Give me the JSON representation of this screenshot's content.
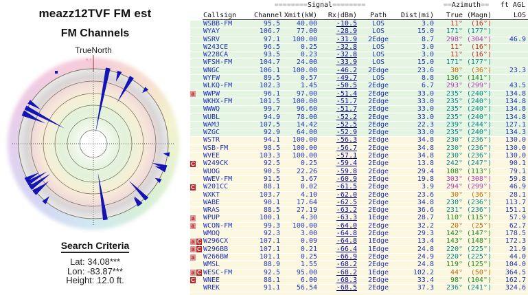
{
  "left_panel": {
    "title_line1": "meazz12TVF FM est",
    "title_line2": "FM Channels",
    "compass_label": "TrueNorth",
    "north_marker": "N",
    "search": {
      "heading": "Search Criteria",
      "lat_label": "Lat:",
      "lat_value": "34.08***",
      "lon_label": "Lon:",
      "lon_value": "-83.87***",
      "height_label": "Height:",
      "height_value": "12.0 ft."
    }
  },
  "table": {
    "signal_deco": "========",
    "signal_label": "Signal",
    "azimuth_deco": "==",
    "azimuth_label": "Azimuth",
    "ftagl_label": "ft AGL",
    "columns": {
      "callsign": "Callsign",
      "channel": "Channel",
      "xmit": "Xmit(kW)",
      "rx": "Rx(dBm)",
      "path": "Path",
      "dist": "Dist(mi)",
      "true": "True",
      "magn": "(Magn)",
      "los": "LOS"
    }
  },
  "palette": {
    "red": "#c6271c",
    "orange": "#c66a00",
    "green": "#1e8b1e",
    "teal": "#028b8b",
    "magenta": "#b43fb4",
    "spike_blue": "#1414b4",
    "row_green": "#e4f5e2",
    "row_cream": "#fcf8e0"
  },
  "chart_data": {
    "type": "radar-spikes+table",
    "title": "meazz12TVF FM est — FM Channels",
    "radar": {
      "orientation_label": "TrueNorth",
      "rings": 6,
      "angle_encoding": "true_azimuth_deg",
      "length_encoding": "rx_dbm (stronger = longer spike toward center)",
      "spike_color": "#1414b4"
    },
    "rows": [
      {
        "flags": [],
        "callsign": "WSBB-FM",
        "channel": "95.5",
        "xmit": "40.00",
        "rx": "-10.5",
        "path": "LOS",
        "dist": "3.0",
        "true_az": "11",
        "magn": "16",
        "los": "",
        "band": "green",
        "dir": "red"
      },
      {
        "flags": [],
        "callsign": "WYAY",
        "channel": "106.7",
        "xmit": "77.00",
        "rx": "-28.9",
        "path": "LOS",
        "dist": "15.0",
        "true_az": "171",
        "magn": "177",
        "los": "",
        "band": "green",
        "dir": "teal"
      },
      {
        "flags": [],
        "callsign": "WSRV",
        "channel": "97.1",
        "xmit": "100.00",
        "rx": "-31.9",
        "path": "2Edge",
        "dist": "8.7",
        "true_az": "298",
        "magn": "304",
        "los": "46.9",
        "band": "green",
        "dir": "magenta"
      },
      {
        "flags": [],
        "callsign": "W243CE",
        "channel": "96.5",
        "xmit": "0.25",
        "rx": "-32.8",
        "path": "LOS",
        "dist": "3.0",
        "true_az": "11",
        "magn": "16",
        "los": "",
        "band": "green",
        "dir": "red"
      },
      {
        "flags": [],
        "callsign": "W228CA",
        "channel": "93.5",
        "xmit": "0.23",
        "rx": "-32.8",
        "path": "LOS",
        "dist": "3.0",
        "true_az": "11",
        "magn": "16",
        "los": "",
        "band": "green",
        "dir": "red"
      },
      {
        "flags": [],
        "callsign": "WFSH-FM",
        "channel": "104.7",
        "xmit": "24.00",
        "rx": "-33.9",
        "path": "LOS",
        "dist": "15.0",
        "true_az": "171",
        "magn": "177",
        "los": "",
        "band": "green",
        "dir": "teal"
      },
      {
        "flags": [],
        "callsign": "WNGC",
        "channel": "106.1",
        "xmit": "100.00",
        "rx": "-46.2",
        "path": "2Edge",
        "dist": "23.6",
        "true_az": "30",
        "magn": "36",
        "los": "23.3",
        "band": "green",
        "dir": "orange"
      },
      {
        "flags": [],
        "callsign": "WYFW",
        "channel": "89.5",
        "xmit": "0.57",
        "rx": "-49.7",
        "path": "LOS",
        "dist": "8.8",
        "true_az": "136",
        "magn": "141",
        "los": "",
        "band": "green",
        "dir": "green"
      },
      {
        "flags": [],
        "callsign": "WLKQ-FM",
        "channel": "102.3",
        "xmit": "1.45",
        "rx": "-50.5",
        "path": "2Edge",
        "dist": "6.7",
        "true_az": "293",
        "magn": "299",
        "los": "43.5",
        "band": "green",
        "dir": "magenta"
      },
      {
        "flags": [
          "a"
        ],
        "callsign": "WWPW",
        "channel": "96.1",
        "xmit": "97.00",
        "rx": "-51.4",
        "path": "2Edge",
        "dist": "33.0",
        "true_az": "235",
        "magn": "240",
        "los": "134.8",
        "band": "green",
        "dir": "teal"
      },
      {
        "flags": [],
        "callsign": "WKHX-FM",
        "channel": "101.5",
        "xmit": "100.00",
        "rx": "-51.7",
        "path": "2Edge",
        "dist": "33.0",
        "true_az": "235",
        "magn": "240",
        "los": "134.8",
        "band": "green",
        "dir": "teal"
      },
      {
        "flags": [],
        "callsign": "WWWQ",
        "channel": "99.7",
        "xmit": "96.60",
        "rx": "-51.7",
        "path": "2Edge",
        "dist": "33.0",
        "true_az": "235",
        "magn": "240",
        "los": "134.8",
        "band": "green",
        "dir": "teal"
      },
      {
        "flags": [],
        "callsign": "WUBL",
        "channel": "94.9",
        "xmit": "78.00",
        "rx": "-52.2",
        "path": "2Edge",
        "dist": "33.0",
        "true_az": "235",
        "magn": "240",
        "los": "134.8",
        "band": "green",
        "dir": "teal"
      },
      {
        "flags": [],
        "callsign": "WAMJ",
        "channel": "107.5",
        "xmit": "14.42",
        "rx": "-52.5",
        "path": "2Edge",
        "dist": "22.3",
        "true_az": "239",
        "magn": "244",
        "los": "127.1",
        "band": "green",
        "dir": "teal"
      },
      {
        "flags": [],
        "callsign": "WZGC",
        "channel": "92.9",
        "xmit": "64.00",
        "rx": "-52.9",
        "path": "2Edge",
        "dist": "33.0",
        "true_az": "235",
        "magn": "240",
        "los": "134.3",
        "band": "green",
        "dir": "teal"
      },
      {
        "flags": [],
        "callsign": "WSTR",
        "channel": "94.1",
        "xmit": "100.00",
        "rx": "-56.3",
        "path": "2Edge",
        "dist": "34.8",
        "true_az": "230",
        "magn": "236",
        "los": "130.0",
        "band": "cream",
        "dir": "teal"
      },
      {
        "flags": [],
        "callsign": "WSB-FM",
        "channel": "98.5",
        "xmit": "100.00",
        "rx": "-56.7",
        "path": "2Edge",
        "dist": "34.8",
        "true_az": "230",
        "magn": "236",
        "los": "130.0",
        "band": "cream",
        "dir": "teal"
      },
      {
        "flags": [],
        "callsign": "WVEE",
        "channel": "103.3",
        "xmit": "100.00",
        "rx": "-57.1",
        "path": "2Edge",
        "dist": "34.8",
        "true_az": "230",
        "magn": "236",
        "los": "130.0",
        "band": "cream",
        "dir": "teal"
      },
      {
        "flags": [
          "C"
        ],
        "callsign": "W249CK",
        "channel": "92.5",
        "xmit": "0.25",
        "rx": "-59.4",
        "path": "2Edge",
        "dist": "13.8",
        "true_az": "242",
        "magn": "247",
        "los": "90.1",
        "band": "cream",
        "dir": "teal"
      },
      {
        "flags": [],
        "callsign": "WUOG",
        "channel": "90.5",
        "xmit": "22.26",
        "rx": "-59.8",
        "path": "2Edge",
        "dist": "29.4",
        "true_az": "108",
        "magn": "113",
        "los": "79.1",
        "band": "cream",
        "dir": "green"
      },
      {
        "flags": [],
        "callsign": "WWEV-FM",
        "channel": "91.5",
        "xmit": "3.67",
        "rx": "-60.9",
        "path": "2Edge",
        "dist": "19.8",
        "true_az": "303",
        "magn": "308",
        "los": "59.8",
        "band": "cream",
        "dir": "magenta"
      },
      {
        "flags": [
          "C"
        ],
        "callsign": "W201CC",
        "channel": "88.1",
        "xmit": "0.02",
        "rx": "-61.5",
        "path": "2Edge",
        "dist": "3.9",
        "true_az": "294",
        "magn": "299",
        "los": "46.9",
        "band": "cream",
        "dir": "magenta"
      },
      {
        "flags": [],
        "callsign": "WXKT",
        "channel": "103.7",
        "xmit": "4.10",
        "rx": "-62.0",
        "path": "2Edge",
        "dist": "23.6",
        "true_az": "30",
        "magn": "36",
        "los": "28.1",
        "band": "cream",
        "dir": "orange"
      },
      {
        "flags": [],
        "callsign": "WABE",
        "channel": "90.1",
        "xmit": "17.64",
        "rx": "-62.5",
        "path": "2Edge",
        "dist": "34.8",
        "true_az": "230",
        "magn": "236",
        "los": "113.7",
        "band": "cream",
        "dir": "teal"
      },
      {
        "flags": [],
        "callsign": "WRAS",
        "channel": "88.5",
        "xmit": "27.19",
        "rx": "-63.2",
        "path": "2Edge",
        "dist": "36.6",
        "true_az": "231",
        "magn": "236",
        "los": "151.1",
        "band": "cream",
        "dir": "teal"
      },
      {
        "flags": [
          "a"
        ],
        "callsign": "WPUP",
        "channel": "100.1",
        "xmit": "4.30",
        "rx": "-63.3",
        "path": "1Edge",
        "dist": "28.7",
        "true_az": "110",
        "magn": "115",
        "los": "57.9",
        "band": "cream",
        "dir": "green"
      },
      {
        "flags": [
          "a"
        ],
        "callsign": "WCON-FM",
        "channel": "99.3",
        "xmit": "100.00",
        "rx": "-64.0",
        "path": "2Edge",
        "dist": "32.2",
        "true_az": "20",
        "magn": "25",
        "los": "62.7",
        "band": "cream",
        "dir": "orange"
      },
      {
        "flags": [],
        "callsign": "WMOQ",
        "channel": "92.3",
        "xmit": "3.00",
        "rx": "-64.8",
        "path": "2Edge",
        "dist": "29.3",
        "true_az": "142",
        "magn": "147",
        "los": "178.5",
        "band": "cream",
        "dir": "green"
      },
      {
        "flags": [
          "a",
          "C"
        ],
        "callsign": "W296CX",
        "channel": "107.1",
        "xmit": "0.09",
        "rx": "-64.8",
        "path": "1Edge",
        "dist": "13.4",
        "true_az": "143",
        "magn": "148",
        "los": "172.3",
        "band": "cream",
        "dir": "green"
      },
      {
        "flags": [
          "a",
          "C"
        ],
        "callsign": "W296BB",
        "channel": "107.1",
        "xmit": "0.21",
        "rx": "-66.4",
        "path": "1Edge",
        "dist": "24.8",
        "true_az": "220",
        "magn": "225",
        "los": "21.9",
        "band": "cream",
        "dir": "teal"
      },
      {
        "flags": [
          "a"
        ],
        "callsign": "W266BW",
        "channel": "101.1",
        "xmit": "0.25",
        "rx": "-66.9",
        "path": "2Edge",
        "dist": "24.9",
        "true_az": "220",
        "magn": "225",
        "los": "44.0",
        "band": "cream",
        "dir": "teal"
      },
      {
        "flags": [],
        "callsign": "WMSL",
        "channel": "88.9",
        "xmit": "1.55",
        "rx": "-68.2",
        "path": "2Edge",
        "dist": "24.8",
        "true_az": "119",
        "magn": "125",
        "los": "104.0",
        "band": "cream",
        "dir": "green"
      },
      {
        "flags": [
          "a",
          "C"
        ],
        "callsign": "WESC-FM",
        "channel": "92.5",
        "xmit": "95.00",
        "rx": "-68.2",
        "path": "1Edge",
        "dist": "102.2",
        "true_az": "44",
        "magn": "50",
        "los": "364.5",
        "band": "cream",
        "dir": "orange"
      },
      {
        "flags": [
          "C"
        ],
        "callsign": "WNEE",
        "channel": "88.1",
        "xmit": "6.00",
        "rx": "-68.3",
        "path": "2Edge",
        "dist": "33.4",
        "true_az": "98",
        "magn": "104",
        "los": "162.7",
        "band": "cream",
        "dir": "green"
      },
      {
        "flags": [],
        "callsign": "WREK",
        "channel": "91.1",
        "xmit": "56.54",
        "rx": "-68.5",
        "path": "2Edge",
        "dist": "37.3",
        "true_az": "236",
        "magn": "241",
        "los": "324.6",
        "band": "cream",
        "dir": "teal"
      }
    ]
  }
}
